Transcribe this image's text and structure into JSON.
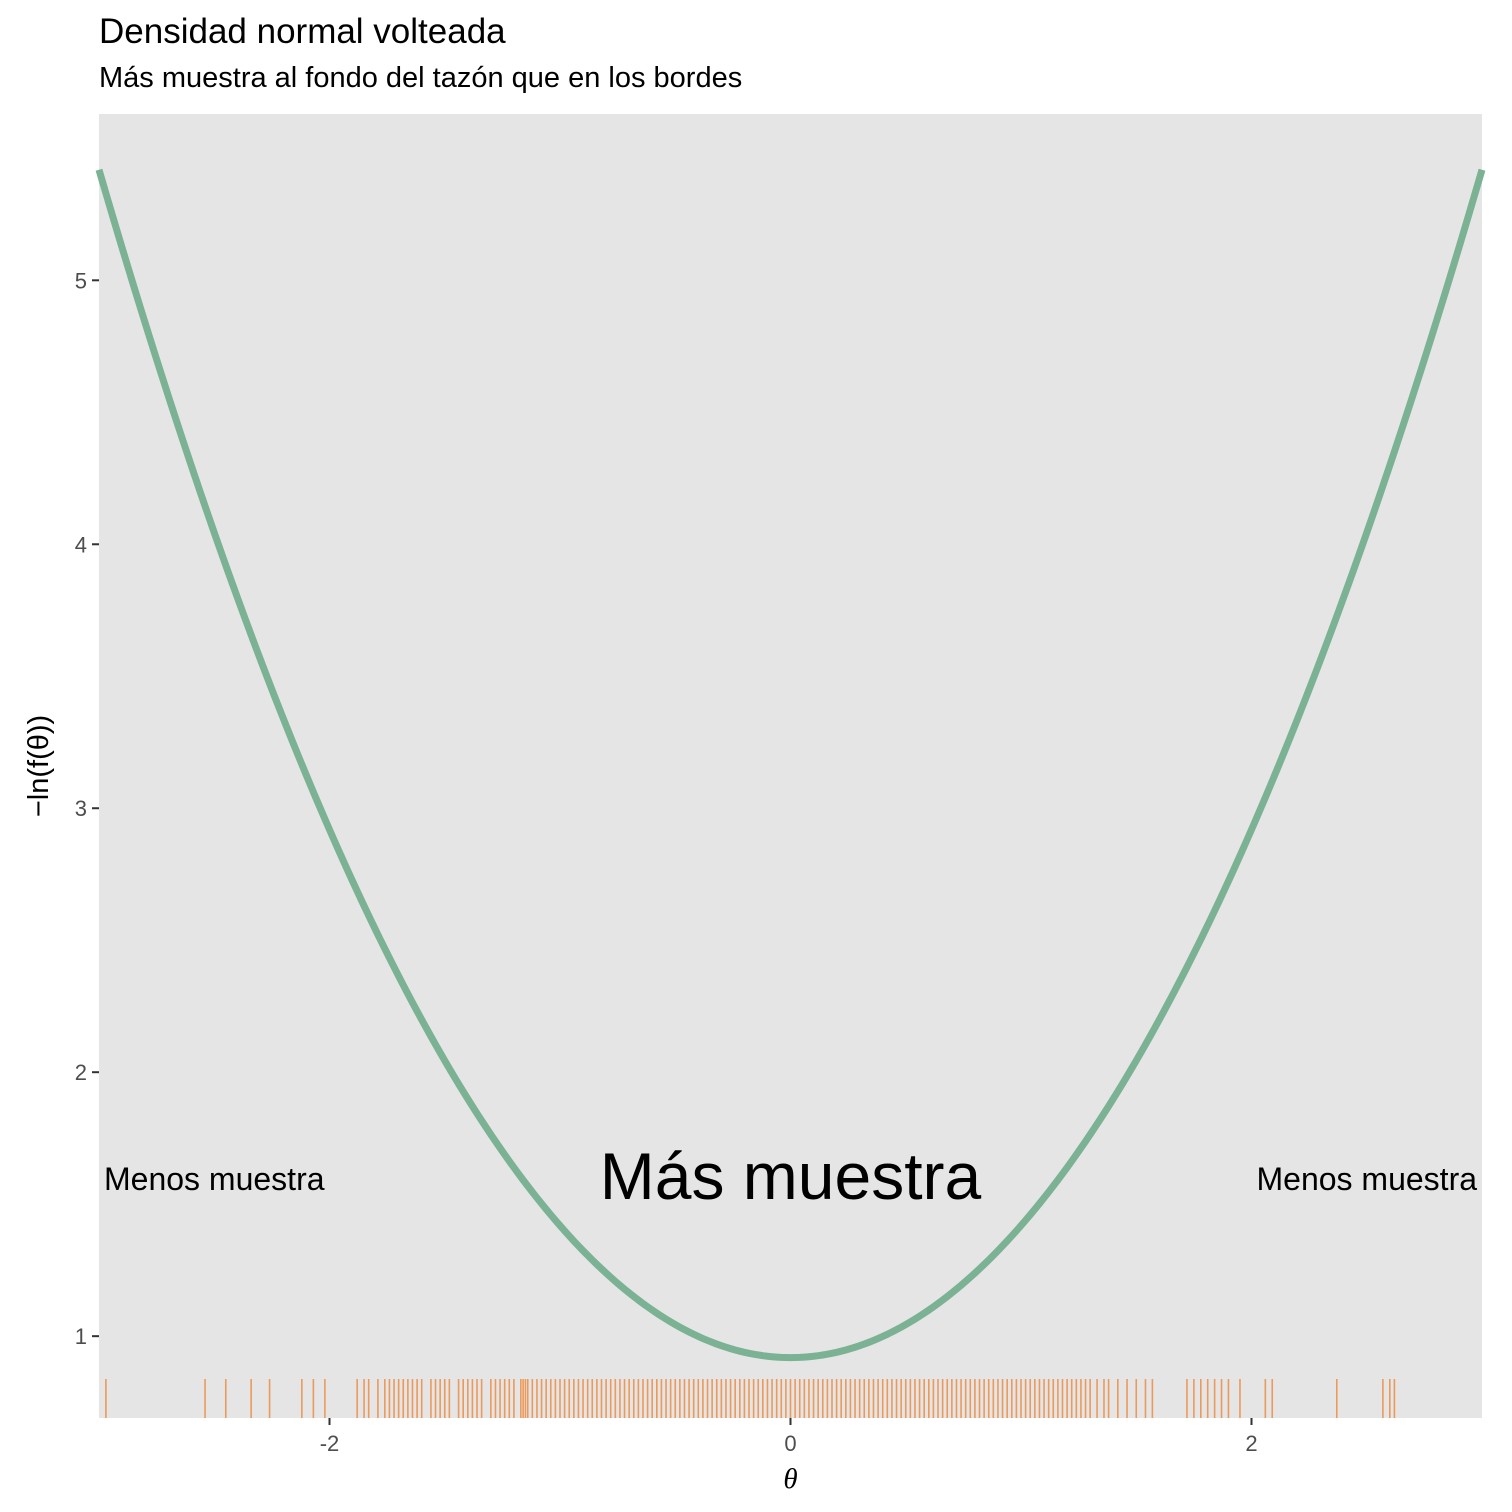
{
  "title": "Densidad normal volteada",
  "subtitle": "Más muestra al fondo del tazón que en los bordes",
  "chart_data": {
    "type": "line",
    "xlabel": "θ",
    "ylabel": "−ln(f(θ))",
    "xlim": [
      -3.0,
      3.0
    ],
    "ylim": [
      0.69,
      5.63
    ],
    "x_ticks": [
      -2,
      0,
      2
    ],
    "x_tick_labels": [
      "-2",
      "0",
      "2"
    ],
    "y_ticks": [
      1,
      2,
      3,
      4,
      5
    ],
    "y_tick_labels": [
      "1",
      "2",
      "3",
      "4",
      "5"
    ],
    "grid": false,
    "panel_background": "#e5e5e5",
    "line_color": "#7bb294",
    "rug_color": "#eb9a5b",
    "curve": {
      "x_range": [
        -3.0,
        3.0
      ],
      "function": "-ln(dnorm(θ))"
    },
    "annotations": [
      {
        "text": "Menos muestra",
        "x": -2.5,
        "y": 1.6,
        "size": "small"
      },
      {
        "text": "Más muestra",
        "x": 0.0,
        "y": 1.6,
        "size": "large"
      },
      {
        "text": "Menos muestra",
        "x": 2.5,
        "y": 1.6,
        "size": "small"
      }
    ],
    "rug": [
      -2.97,
      -2.54,
      -2.45,
      -2.34,
      -2.26,
      -2.12,
      -2.07,
      -2.02,
      -1.88,
      -1.85,
      -1.83,
      -1.79,
      -1.76,
      -1.74,
      -1.72,
      -1.7,
      -1.68,
      -1.66,
      -1.64,
      -1.62,
      -1.6,
      -1.56,
      -1.54,
      -1.52,
      -1.5,
      -1.48,
      -1.44,
      -1.42,
      -1.4,
      -1.38,
      -1.36,
      -1.34,
      -1.3,
      -1.28,
      -1.26,
      -1.24,
      -1.22,
      -1.2,
      -1.17,
      -1.16,
      -1.15,
      -1.14,
      -1.12,
      -1.1,
      -1.08,
      -1.06,
      -1.04,
      -1.02,
      -1.0,
      -0.98,
      -0.96,
      -0.94,
      -0.92,
      -0.9,
      -0.88,
      -0.86,
      -0.84,
      -0.82,
      -0.8,
      -0.78,
      -0.76,
      -0.74,
      -0.72,
      -0.7,
      -0.68,
      -0.66,
      -0.64,
      -0.62,
      -0.6,
      -0.58,
      -0.56,
      -0.54,
      -0.52,
      -0.5,
      -0.48,
      -0.46,
      -0.44,
      -0.42,
      -0.4,
      -0.38,
      -0.36,
      -0.34,
      -0.32,
      -0.3,
      -0.28,
      -0.26,
      -0.24,
      -0.22,
      -0.2,
      -0.18,
      -0.16,
      -0.14,
      -0.12,
      -0.1,
      -0.08,
      -0.06,
      -0.04,
      -0.02,
      0.0,
      0.02,
      0.04,
      0.06,
      0.08,
      0.1,
      0.12,
      0.14,
      0.16,
      0.18,
      0.2,
      0.22,
      0.24,
      0.26,
      0.28,
      0.3,
      0.32,
      0.34,
      0.36,
      0.38,
      0.4,
      0.42,
      0.44,
      0.46,
      0.48,
      0.5,
      0.52,
      0.54,
      0.56,
      0.58,
      0.6,
      0.62,
      0.64,
      0.66,
      0.68,
      0.7,
      0.72,
      0.74,
      0.76,
      0.78,
      0.8,
      0.82,
      0.84,
      0.86,
      0.88,
      0.9,
      0.92,
      0.94,
      0.96,
      0.98,
      1.0,
      1.02,
      1.04,
      1.06,
      1.08,
      1.1,
      1.12,
      1.14,
      1.16,
      1.18,
      1.2,
      1.22,
      1.24,
      1.26,
      1.28,
      1.3,
      1.33,
      1.36,
      1.38,
      1.42,
      1.46,
      1.5,
      1.54,
      1.57,
      1.72,
      1.75,
      1.78,
      1.81,
      1.84,
      1.87,
      1.9,
      1.95,
      2.06,
      2.09,
      2.37,
      2.57,
      2.6,
      2.62
    ]
  }
}
